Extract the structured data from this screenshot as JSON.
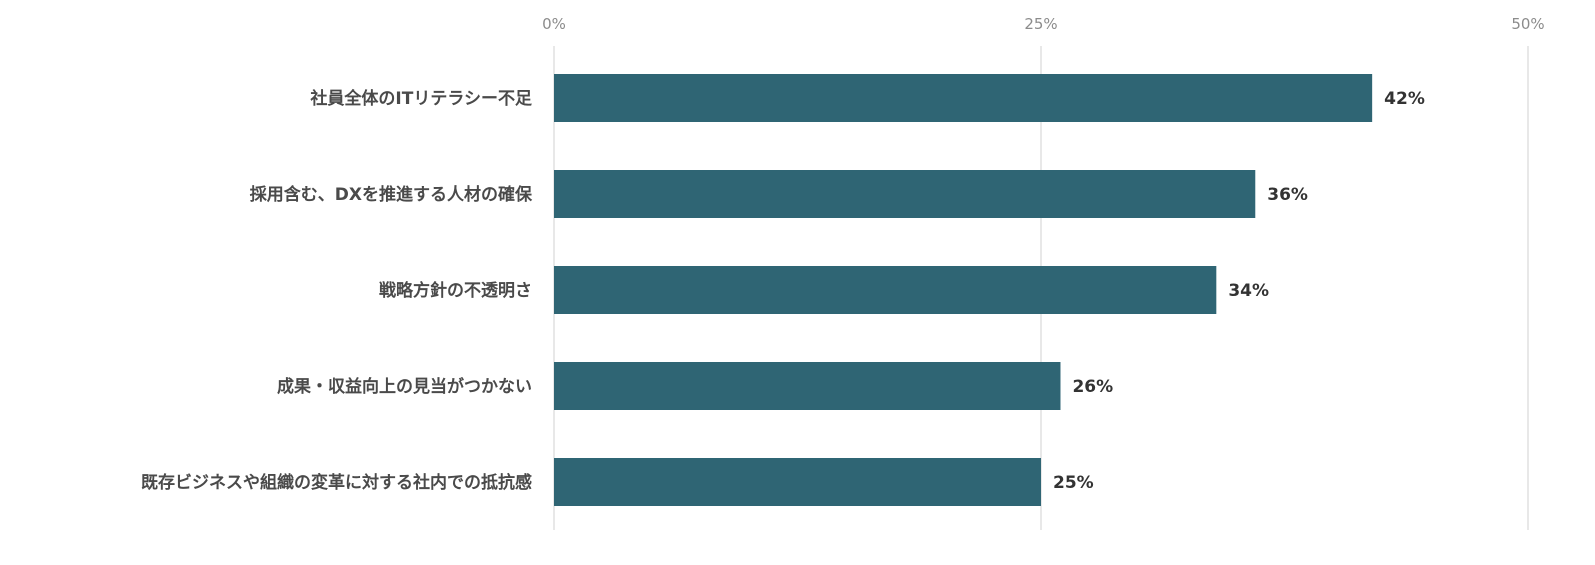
{
  "chart_data": {
    "type": "bar",
    "orientation": "horizontal",
    "title": "",
    "xlabel": "",
    "ylabel": "",
    "xlim": [
      0,
      50
    ],
    "ticks": [
      0,
      25,
      50
    ],
    "tick_labels": [
      "0%",
      "25%",
      "50%"
    ],
    "tick_position": "top",
    "grid": true,
    "legend": "none",
    "categories": [
      "社員全体のITリテラシー不足",
      "採用含む、DXを推進する人材の確保",
      "戦略方針の不透明さ",
      "成果・収益向上の見当がつかない",
      "既存ビジネスや組織の変革に対する社内での抵抗感"
    ],
    "values": [
      42,
      36,
      34,
      26,
      25
    ],
    "data_labels": [
      "42%",
      "36%",
      "34%",
      "26%",
      "25%"
    ],
    "bar_color": "#2f6574"
  }
}
